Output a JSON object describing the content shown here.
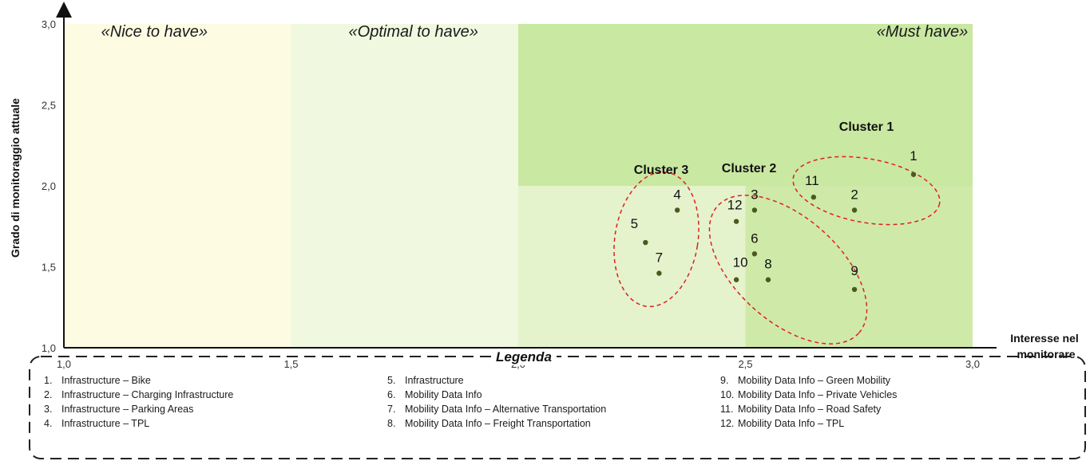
{
  "chart_data": {
    "type": "scatter",
    "xlabel": "Interesse nel monitorare",
    "ylabel": "Grado di monitoraggio attuale",
    "xlim": [
      1.0,
      3.0
    ],
    "ylim": [
      1.0,
      3.0
    ],
    "x_ticks": [
      "1,0",
      "1,5",
      "2,0",
      "2,5",
      "3,0"
    ],
    "y_ticks": [
      "1,0",
      "1,5",
      "2,0",
      "2,5",
      "3,0"
    ],
    "grid": false,
    "zones": [
      {
        "label": "«Nice to have»",
        "color": "#fdfbe0"
      },
      {
        "label": "«Optimal to have»",
        "color": "#eef7dc"
      },
      {
        "label": "«Must have»",
        "color": "#c9e7a0"
      }
    ],
    "points": [
      {
        "label": "1",
        "x": 2.87,
        "y": 2.07
      },
      {
        "label": "2",
        "x": 2.74,
        "y": 1.85
      },
      {
        "label": "3",
        "x": 2.52,
        "y": 1.85
      },
      {
        "label": "4",
        "x": 2.35,
        "y": 1.85
      },
      {
        "label": "5",
        "x": 2.28,
        "y": 1.65
      },
      {
        "label": "6",
        "x": 2.52,
        "y": 1.58
      },
      {
        "label": "7",
        "x": 2.31,
        "y": 1.46
      },
      {
        "label": "8",
        "x": 2.55,
        "y": 1.42
      },
      {
        "label": "9",
        "x": 2.74,
        "y": 1.36
      },
      {
        "label": "10",
        "x": 2.48,
        "y": 1.42
      },
      {
        "label": "11",
        "x": 2.65,
        "y": 1.93
      },
      {
        "label": "12",
        "x": 2.48,
        "y": 1.78
      }
    ],
    "clusters": [
      {
        "label": "Cluster 1"
      },
      {
        "label": "Cluster 2"
      },
      {
        "label": "Cluster 3"
      }
    ],
    "point_color": "#4a5a1e",
    "cluster_color": "#e02020"
  },
  "legend": {
    "title": "Legenda",
    "items": [
      {
        "num": "1.",
        "text": "Infrastructure – Bike"
      },
      {
        "num": "2.",
        "text": "Infrastructure – Charging Infrastructure"
      },
      {
        "num": "3.",
        "text": "Infrastructure – Parking Areas"
      },
      {
        "num": "4.",
        "text": "Infrastructure – TPL"
      },
      {
        "num": "5.",
        "text": "Infrastructure"
      },
      {
        "num": "6.",
        "text": "Mobility Data Info"
      },
      {
        "num": "7.",
        "text": "Mobility Data Info – Alternative Transportation"
      },
      {
        "num": "8.",
        "text": "Mobility Data Info – Freight Transportation"
      },
      {
        "num": "9.",
        "text": "Mobility Data Info – Green Mobility"
      },
      {
        "num": "10.",
        "text": "Mobility Data Info – Private Vehicles"
      },
      {
        "num": "11.",
        "text": "Mobility Data Info – Road Safety"
      },
      {
        "num": "12.",
        "text": "Mobility Data Info – TPL"
      }
    ]
  }
}
